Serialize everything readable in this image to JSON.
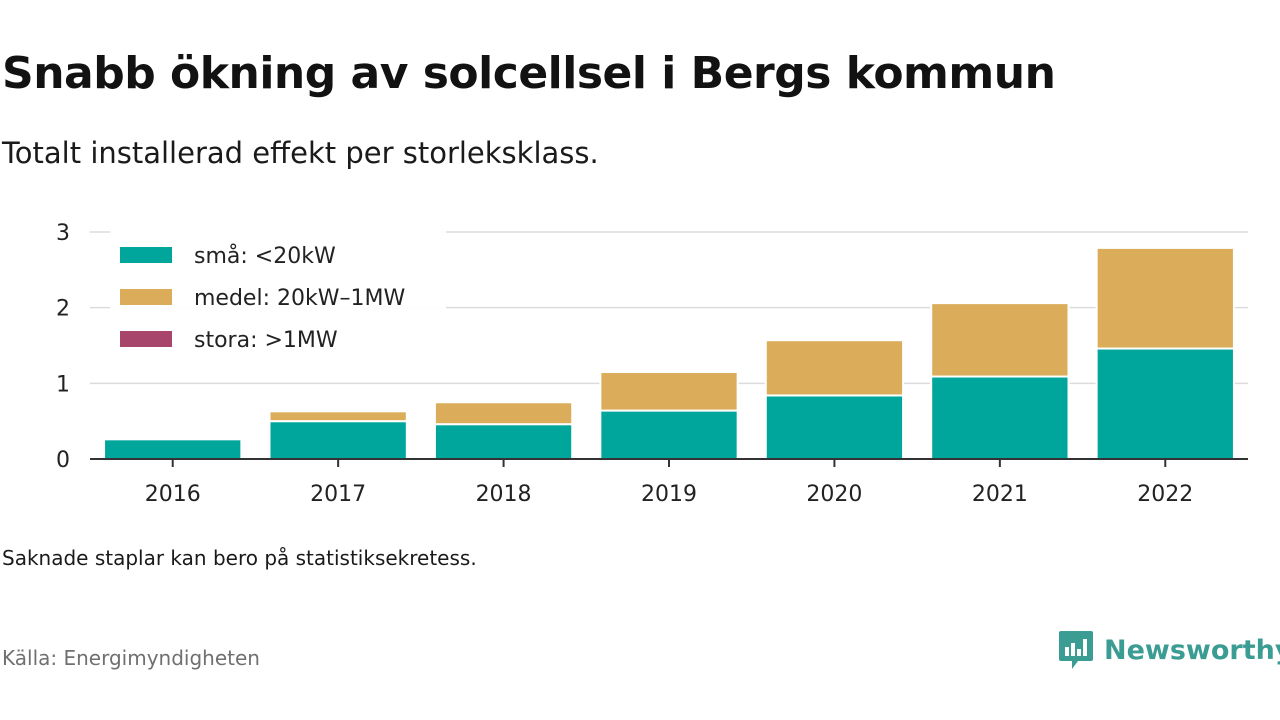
{
  "title": "Snabb ökning av solcellsel i Bergs kommun",
  "subtitle": "Totalt installerad effekt per storleksklass.",
  "note": "Saknade staplar kan bero på statistiksekretess.",
  "source": "Källa: Energimyndigheten",
  "brand": {
    "name": "Newsworthy",
    "icon": "newsworthy-logo-icon",
    "color": "#3b9c93"
  },
  "chart_data": {
    "type": "bar",
    "stacked": true,
    "categories": [
      "2016",
      "2017",
      "2018",
      "2019",
      "2020",
      "2021",
      "2022"
    ],
    "series": [
      {
        "name": "små: <20kW",
        "color": "#00a59b",
        "values": [
          0.26,
          0.5,
          0.46,
          0.64,
          0.84,
          1.09,
          1.46
        ]
      },
      {
        "name": "medel: 20kW–1MW",
        "color": "#dbad5a",
        "values": [
          0,
          0.13,
          0.29,
          0.51,
          0.73,
          0.97,
          1.33
        ]
      },
      {
        "name": "stora: >1MW",
        "color": "#a8456b",
        "values": [
          0,
          0,
          0,
          0,
          0,
          0,
          0
        ]
      }
    ],
    "yticks": [
      0,
      1,
      2,
      3
    ],
    "ylim": [
      0,
      3
    ],
    "grid": true,
    "legend": "top-left"
  }
}
